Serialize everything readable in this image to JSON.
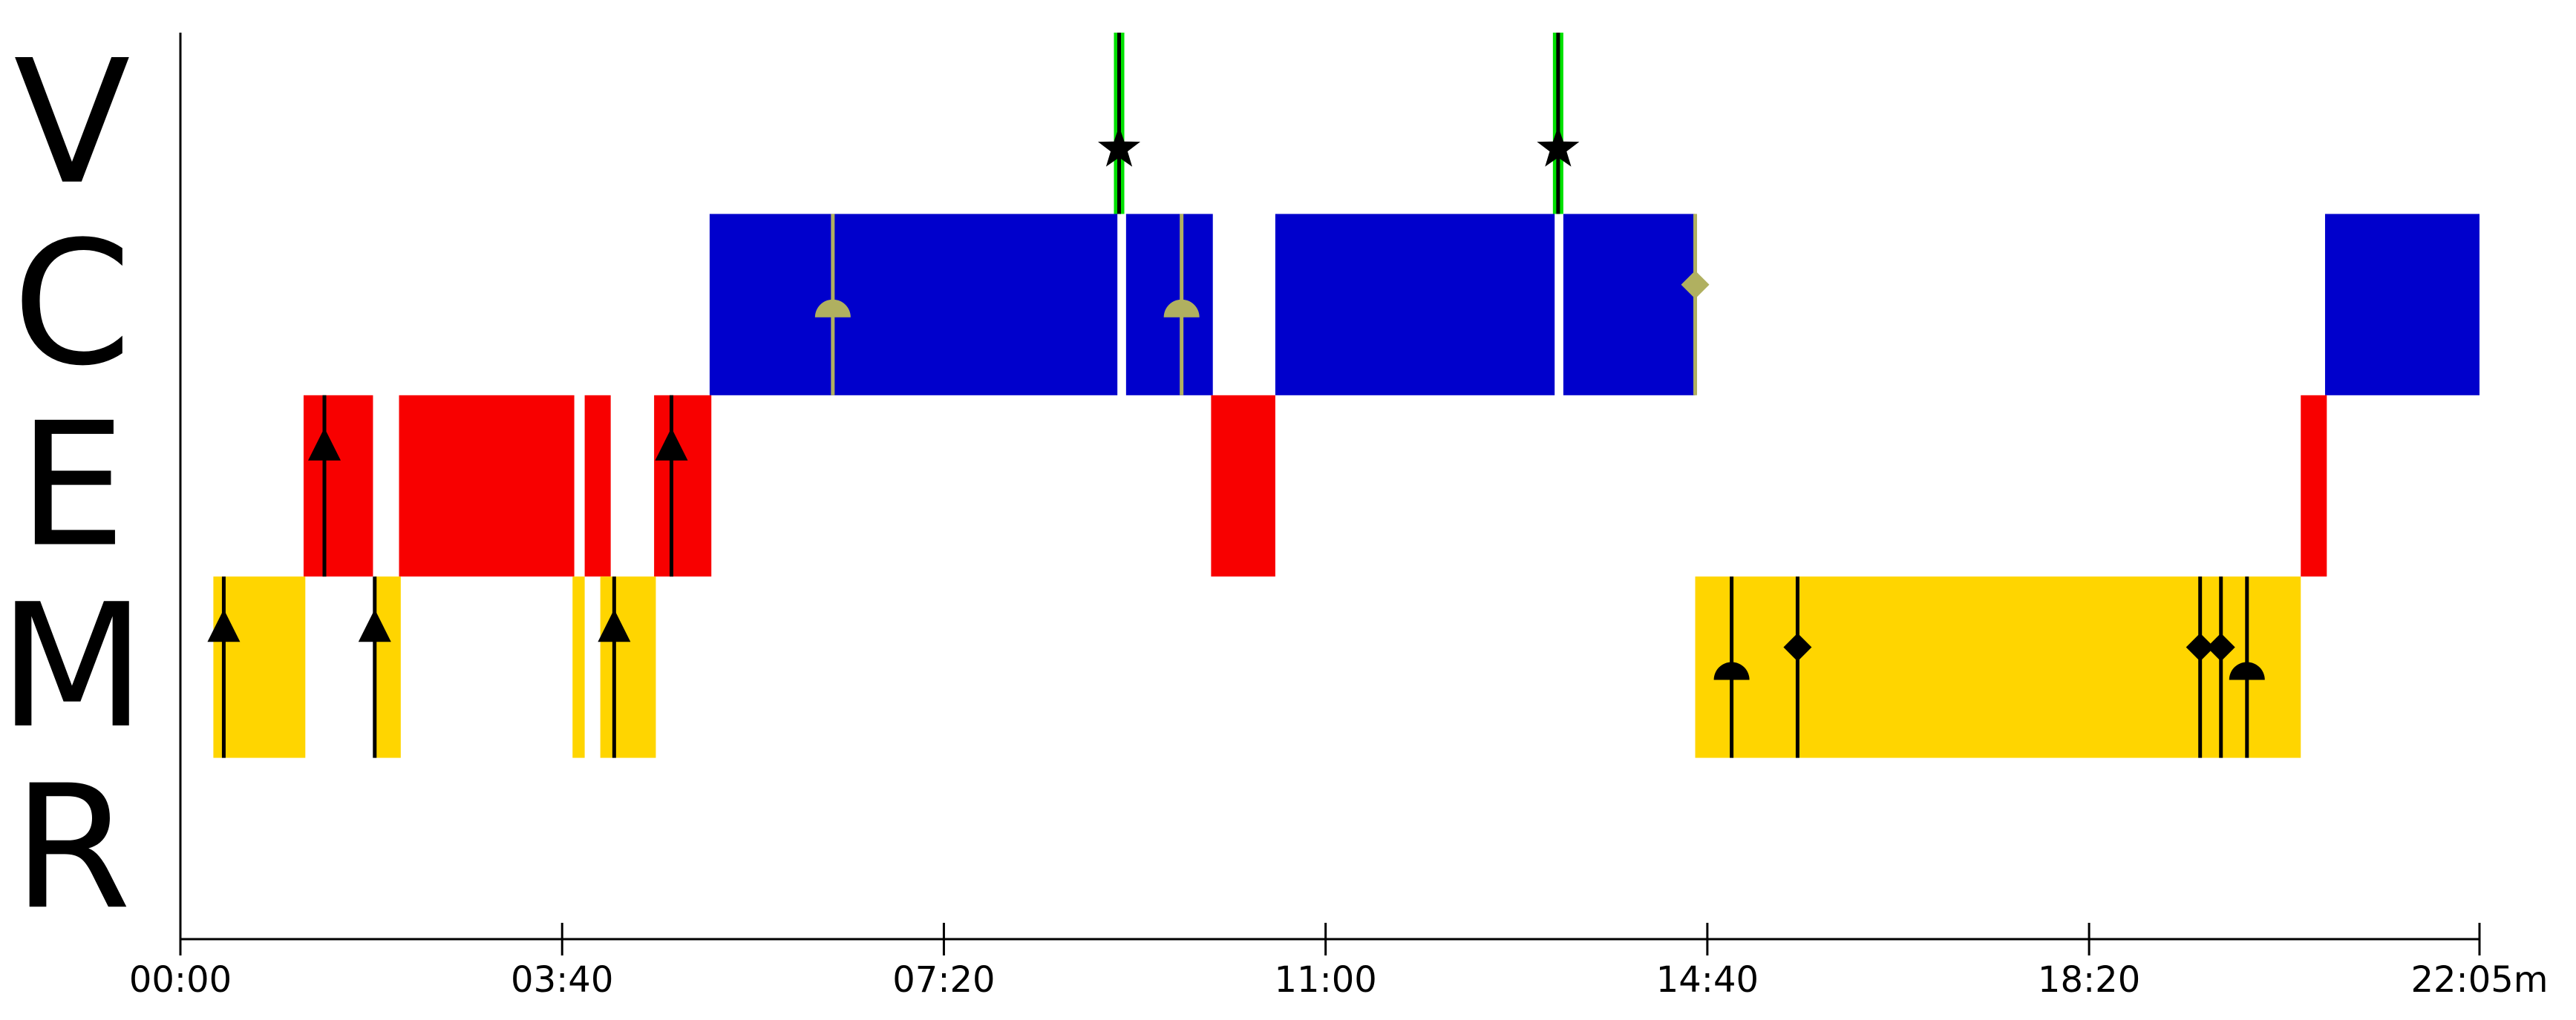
{
  "chart_data": {
    "type": "timeline",
    "xlim": [
      0,
      1325
    ],
    "xticks": [
      {
        "value": 0,
        "label": "00:00"
      },
      {
        "value": 220,
        "label": "03:40"
      },
      {
        "value": 440,
        "label": "07:20"
      },
      {
        "value": 660,
        "label": "11:00"
      },
      {
        "value": 880,
        "label": "14:40"
      },
      {
        "value": 1100,
        "label": "18:20"
      },
      {
        "value": 1325,
        "label": "22:05m"
      }
    ],
    "rows": [
      {
        "label": "V",
        "color": "#00e000",
        "segments": [
          {
            "start": 538,
            "end": 544
          },
          {
            "start": 791,
            "end": 797
          }
        ],
        "events": [
          {
            "x": 541,
            "shape": "star",
            "color": "#000000"
          },
          {
            "x": 794,
            "shape": "star",
            "color": "#000000"
          }
        ]
      },
      {
        "label": "C",
        "color": "#0000cc",
        "segments": [
          {
            "start": 305,
            "end": 540
          },
          {
            "start": 545,
            "end": 595
          },
          {
            "start": 631,
            "end": 792
          },
          {
            "start": 797,
            "end": 873
          },
          {
            "start": 1236,
            "end": 1325
          }
        ],
        "events": [
          {
            "x": 376,
            "shape": "semicircle",
            "color": "#b0b060"
          },
          {
            "x": 577,
            "shape": "semicircle",
            "color": "#b0b060"
          },
          {
            "x": 873,
            "shape": "diamond",
            "color": "#b0b060"
          }
        ]
      },
      {
        "label": "E",
        "color": "#f80000",
        "segments": [
          {
            "start": 71,
            "end": 111
          },
          {
            "start": 126,
            "end": 227
          },
          {
            "start": 233,
            "end": 248
          },
          {
            "start": 273,
            "end": 306
          },
          {
            "start": 594,
            "end": 631
          },
          {
            "start": 1222,
            "end": 1237
          }
        ],
        "events": [
          {
            "x": 83,
            "shape": "triangle",
            "color": "#000000"
          },
          {
            "x": 283,
            "shape": "triangle",
            "color": "#000000"
          }
        ]
      },
      {
        "label": "M",
        "color": "#ffd500",
        "segments": [
          {
            "start": 19,
            "end": 72
          },
          {
            "start": 112,
            "end": 127
          },
          {
            "start": 226,
            "end": 233
          },
          {
            "start": 242,
            "end": 274
          },
          {
            "start": 873,
            "end": 1222
          }
        ],
        "events": [
          {
            "x": 25,
            "shape": "triangle",
            "color": "#000000"
          },
          {
            "x": 112,
            "shape": "triangle",
            "color": "#000000"
          },
          {
            "x": 250,
            "shape": "triangle",
            "color": "#000000"
          },
          {
            "x": 894,
            "shape": "semicircle",
            "color": "#000000"
          },
          {
            "x": 932,
            "shape": "diamond",
            "color": "#000000"
          },
          {
            "x": 1164,
            "shape": "diamond",
            "color": "#000000"
          },
          {
            "x": 1176,
            "shape": "diamond",
            "color": "#000000"
          },
          {
            "x": 1191,
            "shape": "semicircle",
            "color": "#000000"
          }
        ]
      },
      {
        "label": "R",
        "color": "#888888",
        "segments": [],
        "events": []
      }
    ]
  }
}
